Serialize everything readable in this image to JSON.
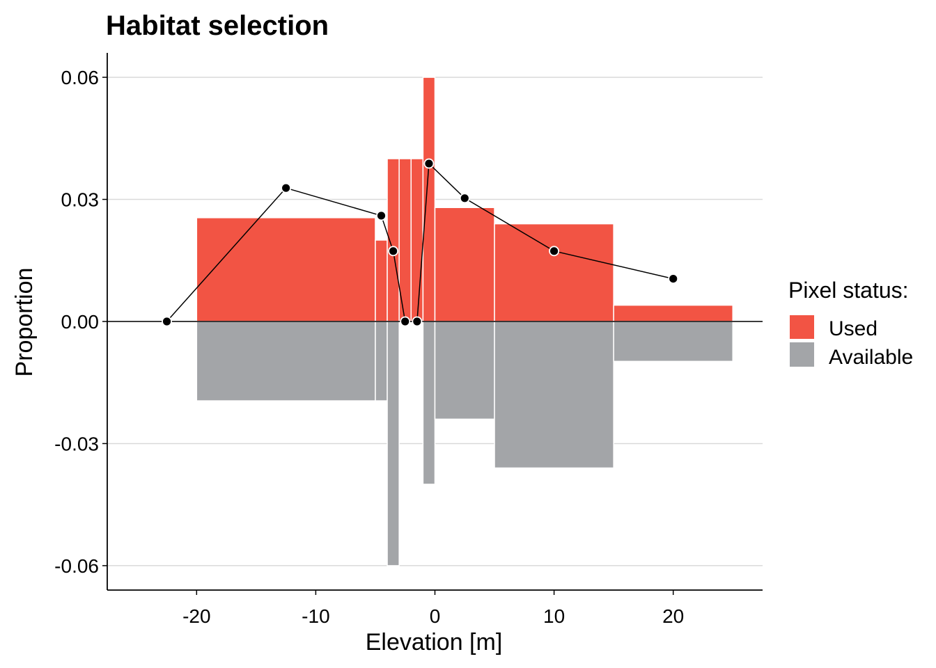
{
  "chart_data": {
    "type": "bar",
    "title": "Habitat selection",
    "xlabel": "Elevation [m]",
    "ylabel": "Proportion",
    "xlim": [
      -27.5,
      27.5
    ],
    "ylim": [
      -0.066,
      0.066
    ],
    "x_ticks": [
      -20,
      -10,
      0,
      10,
      20
    ],
    "x_tick_labels": [
      "-20",
      "-10",
      "0",
      "10",
      "20"
    ],
    "y_ticks": [
      -0.06,
      -0.03,
      0.0,
      0.03,
      0.06
    ],
    "y_tick_labels": [
      "-0.06",
      "-0.03",
      "0.00",
      "0.03",
      "0.06"
    ],
    "grid": "horizontal major",
    "legend": {
      "title": "Pixel status:",
      "placement": "right",
      "entries": [
        {
          "label": "Used",
          "color": "#f25444"
        },
        {
          "label": "Available",
          "color": "#a3a5a8"
        }
      ]
    },
    "series": [
      {
        "name": "Used",
        "color": "#f25444",
        "bins": [
          {
            "x0": -20,
            "x1": -5,
            "value": 0.0255
          },
          {
            "x0": -5,
            "x1": -4,
            "value": 0.02
          },
          {
            "x0": -4,
            "x1": -3,
            "value": 0.04
          },
          {
            "x0": -3,
            "x1": -2,
            "value": 0.04
          },
          {
            "x0": -2,
            "x1": -1,
            "value": 0.04
          },
          {
            "x0": -1,
            "x1": 0,
            "value": 0.06
          },
          {
            "x0": 0,
            "x1": 5,
            "value": 0.028
          },
          {
            "x0": 5,
            "x1": 15,
            "value": 0.024
          },
          {
            "x0": 15,
            "x1": 25,
            "value": 0.004
          }
        ]
      },
      {
        "name": "Available",
        "color": "#a3a5a8",
        "bins": [
          {
            "x0": -20,
            "x1": -5,
            "value": -0.0195
          },
          {
            "x0": -5,
            "x1": -4,
            "value": -0.0195
          },
          {
            "x0": -4,
            "x1": -3,
            "value": -0.06
          },
          {
            "x0": -1,
            "x1": 0,
            "value": -0.04
          },
          {
            "x0": 0,
            "x1": 5,
            "value": -0.024
          },
          {
            "x0": 5,
            "x1": 15,
            "value": -0.036
          },
          {
            "x0": 15,
            "x1": 25,
            "value": -0.0098
          }
        ]
      },
      {
        "type": "line",
        "points": [
          {
            "x": -22.5,
            "y": 0.0
          },
          {
            "x": -12.5,
            "y": 0.0328
          },
          {
            "x": -4.5,
            "y": 0.026
          },
          {
            "x": -3.5,
            "y": 0.0173
          },
          {
            "x": -2.5,
            "y": 0.0
          },
          {
            "x": -1.5,
            "y": 0.0
          },
          {
            "x": -0.5,
            "y": 0.0388
          },
          {
            "x": 2.5,
            "y": 0.0303
          },
          {
            "x": 10,
            "y": 0.0173
          },
          {
            "x": 20,
            "y": 0.0105
          }
        ]
      }
    ]
  }
}
